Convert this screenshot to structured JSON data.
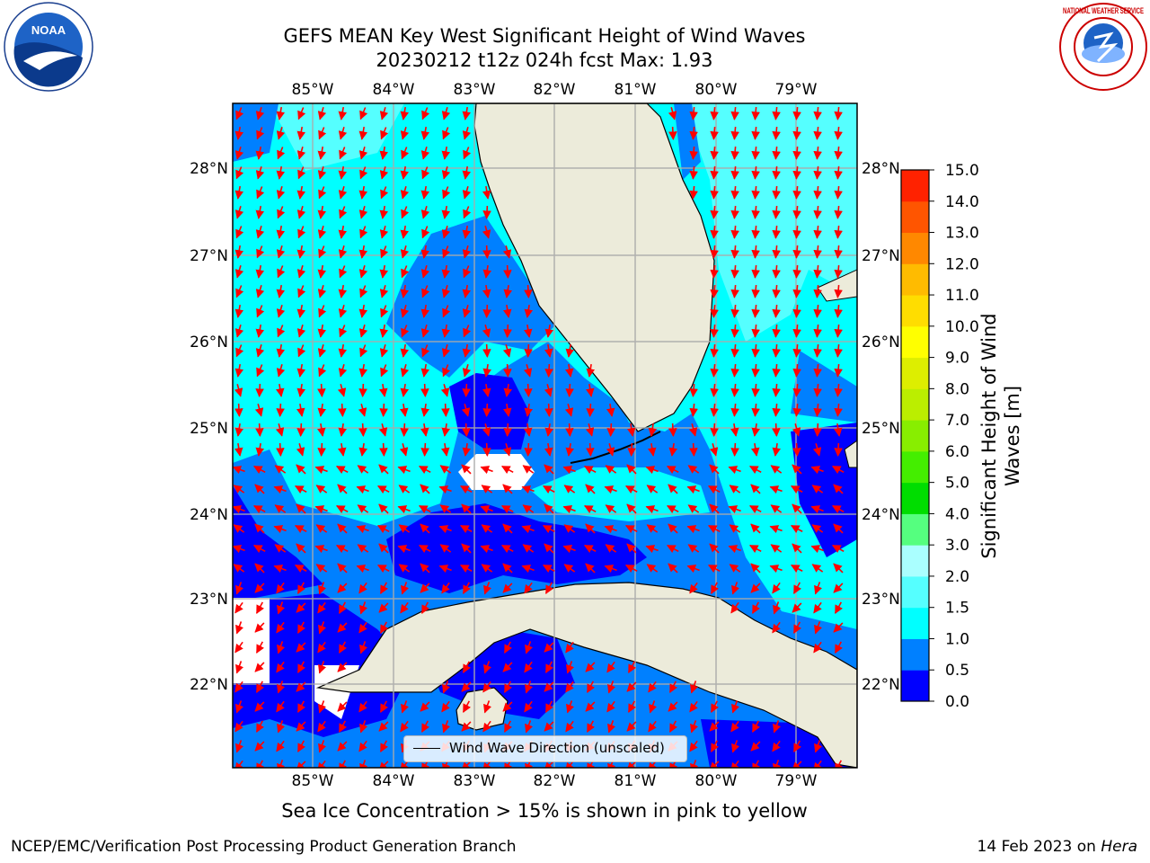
{
  "header": {
    "title_line1": "GEFS MEAN Key West Significant Height of Wind Waves",
    "title_line2": "20230212 t12z 024h fcst   Max: 1.93"
  },
  "map": {
    "lon_labels": [
      "85°W",
      "84°W",
      "83°W",
      "82°W",
      "81°W",
      "80°W",
      "79°W"
    ],
    "lat_labels": [
      "28°N",
      "27°N",
      "26°N",
      "25°N",
      "24°N",
      "23°N",
      "22°N"
    ],
    "land_color": "#ecebda",
    "arrow_color": "#ff0000",
    "legend_label": "Wind Wave Direction (unscaled)"
  },
  "colorbar": {
    "title_line1": "Significant Height of Wind",
    "title_line2": "Waves [m]",
    "tick_labels": [
      "0.0",
      "0.5",
      "1.0",
      "1.5",
      "2.0",
      "3.0",
      "4.0",
      "5.0",
      "6.0",
      "7.0",
      "8.0",
      "9.0",
      "10.0",
      "11.0",
      "12.0",
      "13.0",
      "14.0",
      "15.0"
    ],
    "colors": [
      "#0000ff",
      "#0080ff",
      "#00ffff",
      "#55ffff",
      "#aaffff",
      "#55ff7f",
      "#00dd00",
      "#44ee00",
      "#88ee00",
      "#bbee00",
      "#ddee00",
      "#ffff00",
      "#ffdd00",
      "#ffbb00",
      "#ff8800",
      "#ff5500",
      "#ff2200"
    ]
  },
  "logos": {
    "noaa_text": "NOAA",
    "nws_text": "NATIONAL WEATHER SERVICE"
  },
  "footer": {
    "caption": "Sea Ice Concentration > 15% is shown in pink to yellow",
    "left": "NCEP/EMC/Verification Post Processing Product Generation Branch",
    "right_date": "14 Feb 2023 on ",
    "right_host": "Hera"
  }
}
